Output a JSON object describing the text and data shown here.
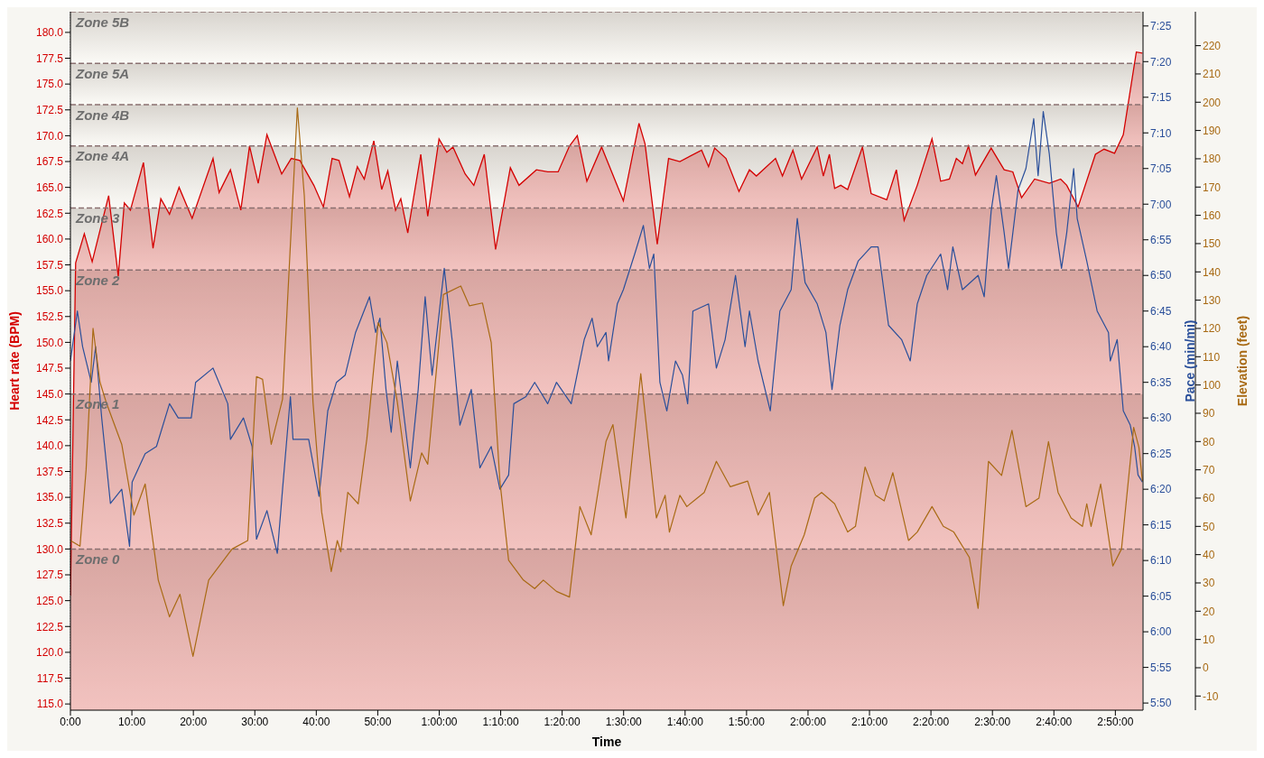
{
  "chart_data": {
    "type": "line",
    "xlabel": "Time",
    "ylabel": "Heart rate (BPM)",
    "y2label": "Pace (min/mi)",
    "y3label": "Elevation (feet)",
    "xlim": [
      0,
      174.5
    ],
    "xticks": [
      {
        "value": 0,
        "label": "0:00"
      },
      {
        "value": 10,
        "label": "10:00"
      },
      {
        "value": 20,
        "label": "20:00"
      },
      {
        "value": 30,
        "label": "30:00"
      },
      {
        "value": 40,
        "label": "40:00"
      },
      {
        "value": 50,
        "label": "50:00"
      },
      {
        "value": 60,
        "label": "1:00:00"
      },
      {
        "value": 70,
        "label": "1:10:00"
      },
      {
        "value": 80,
        "label": "1:20:00"
      },
      {
        "value": 90,
        "label": "1:30:00"
      },
      {
        "value": 100,
        "label": "1:40:00"
      },
      {
        "value": 110,
        "label": "1:50:00"
      },
      {
        "value": 120,
        "label": "2:00:00"
      },
      {
        "value": 130,
        "label": "2:10:00"
      },
      {
        "value": 140,
        "label": "2:20:00"
      },
      {
        "value": 150,
        "label": "2:30:00"
      },
      {
        "value": 160,
        "label": "2:40:00"
      },
      {
        "value": 170,
        "label": "2:50:00"
      }
    ],
    "ylim": [
      114.4,
      182
    ],
    "yticks": [
      {
        "value": 115,
        "label": "115.0"
      },
      {
        "value": 117.5,
        "label": "117.5"
      },
      {
        "value": 120,
        "label": "120.0"
      },
      {
        "value": 122.5,
        "label": "122.5"
      },
      {
        "value": 125,
        "label": "125.0"
      },
      {
        "value": 127.5,
        "label": "127.5"
      },
      {
        "value": 130,
        "label": "130.0"
      },
      {
        "value": 132.5,
        "label": "132.5"
      },
      {
        "value": 135,
        "label": "135.0"
      },
      {
        "value": 137.5,
        "label": "137.5"
      },
      {
        "value": 140,
        "label": "140.0"
      },
      {
        "value": 142.5,
        "label": "142.5"
      },
      {
        "value": 145,
        "label": "145.0"
      },
      {
        "value": 147.5,
        "label": "147.5"
      },
      {
        "value": 150,
        "label": "150.0"
      },
      {
        "value": 152.5,
        "label": "152.5"
      },
      {
        "value": 155,
        "label": "155.0"
      },
      {
        "value": 157.5,
        "label": "157.5"
      },
      {
        "value": 160,
        "label": "160.0"
      },
      {
        "value": 162.5,
        "label": "162.5"
      },
      {
        "value": 165,
        "label": "165.0"
      },
      {
        "value": 167.5,
        "label": "167.5"
      },
      {
        "value": 170,
        "label": "170.0"
      },
      {
        "value": 172.5,
        "label": "172.5"
      },
      {
        "value": 175,
        "label": "175.0"
      },
      {
        "value": 177.5,
        "label": "177.5"
      },
      {
        "value": 180,
        "label": "180.0"
      }
    ],
    "y2lim": [
      349,
      447
    ],
    "y2ticks": [
      {
        "value": 350,
        "label": "5:50"
      },
      {
        "value": 355,
        "label": "5:55"
      },
      {
        "value": 360,
        "label": "6:00"
      },
      {
        "value": 365,
        "label": "6:05"
      },
      {
        "value": 370,
        "label": "6:10"
      },
      {
        "value": 375,
        "label": "6:15"
      },
      {
        "value": 380,
        "label": "6:20"
      },
      {
        "value": 385,
        "label": "6:25"
      },
      {
        "value": 390,
        "label": "6:30"
      },
      {
        "value": 395,
        "label": "6:35"
      },
      {
        "value": 400,
        "label": "6:40"
      },
      {
        "value": 405,
        "label": "6:45"
      },
      {
        "value": 410,
        "label": "6:50"
      },
      {
        "value": 415,
        "label": "6:55"
      },
      {
        "value": 420,
        "label": "7:00"
      },
      {
        "value": 425,
        "label": "7:05"
      },
      {
        "value": 430,
        "label": "7:10"
      },
      {
        "value": 435,
        "label": "7:15"
      },
      {
        "value": 440,
        "label": "7:20"
      },
      {
        "value": 445,
        "label": "7:25"
      }
    ],
    "y3lim": [
      -15,
      232
    ],
    "y3ticks": [
      -10,
      0,
      10,
      20,
      30,
      40,
      50,
      60,
      70,
      80,
      90,
      100,
      110,
      120,
      130,
      140,
      150,
      160,
      170,
      180,
      190,
      200,
      210,
      220
    ],
    "grid": true,
    "legend": false,
    "marker": "none",
    "line_style": "solid",
    "bands": [
      {
        "axis": "y",
        "from": 114.4,
        "to": 130,
        "label": "Zone 0",
        "color": "#d8d4ce"
      },
      {
        "axis": "y",
        "from": 130,
        "to": 145,
        "label": "Zone 1",
        "color": "#d8d4ce"
      },
      {
        "axis": "y",
        "from": 145,
        "to": 157,
        "label": "Zone 2",
        "color": "#d8d4ce"
      },
      {
        "axis": "y",
        "from": 157,
        "to": 163,
        "label": "Zone 3",
        "color": "#d8d4ce"
      },
      {
        "axis": "y",
        "from": 163,
        "to": 169,
        "label": "Zone 4A",
        "color": "#d8d4ce"
      },
      {
        "axis": "y",
        "from": 169,
        "to": 173,
        "label": "Zone 4B",
        "color": "#d8d4ce"
      },
      {
        "axis": "y",
        "from": 173,
        "to": 177,
        "label": "Zone 5A",
        "color": "#d8d4ce"
      },
      {
        "axis": "y",
        "from": 177,
        "to": 182,
        "label": "Zone 5B",
        "color": "#d8d4ce"
      }
    ],
    "series": [
      {
        "type": "area",
        "axis": "y",
        "color": "#d40000",
        "x": [
          0,
          0.85,
          2.26,
          3.54,
          6.22,
          7.78,
          8.77,
          9.76,
          11.88,
          13.44,
          14.71,
          16.12,
          17.68,
          19.8,
          23.2,
          24.19,
          26.03,
          27.72,
          29.14,
          30.55,
          31.97,
          34.37,
          35.93,
          37.34,
          39.6,
          41.16,
          42.57,
          43.7,
          45.4,
          46.68,
          47.81,
          49.36,
          50.64,
          51.63,
          52.9,
          53.75,
          54.88,
          57,
          58.13,
          59.97,
          61.24,
          62.24,
          64.21,
          65.63,
          67.33,
          69.17,
          71.57,
          72.98,
          75.81,
          77.65,
          79.35,
          81.19,
          82.46,
          84.02,
          86.42,
          89.96,
          92.5,
          93.49,
          95.47,
          97.31,
          99.15,
          102.69,
          103.82,
          104.81,
          106.65,
          108.77,
          110.47,
          111.6,
          114.71,
          115.84,
          117.54,
          118.95,
          121.5,
          122.49,
          123.48,
          124.33,
          125.32,
          126.45,
          128.85,
          130.27,
          132.81,
          134.37,
          135.64,
          137.77,
          140.17,
          141.58,
          143,
          144.13,
          145.12,
          146.11,
          147.24,
          149.79,
          151.91,
          153.32,
          154.74,
          156.86,
          159.26,
          161.1,
          162.09,
          163.93,
          166.76,
          168.17,
          169.87,
          171.29,
          173.41,
          174.4
        ],
        "values": [
          125.5,
          157.7,
          160.5,
          157.8,
          164.2,
          156.4,
          163.5,
          162.8,
          167.4,
          159.1,
          163.9,
          162.4,
          165,
          162,
          167.8,
          164.5,
          166.7,
          162.8,
          169,
          165.4,
          170.1,
          166.3,
          167.8,
          167.6,
          165.2,
          163.1,
          167.8,
          167.6,
          164.1,
          167,
          165.8,
          169.5,
          164.8,
          166.6,
          162.8,
          163.9,
          160.6,
          168.2,
          162.2,
          169.7,
          168.4,
          168.9,
          166.3,
          165.2,
          168.2,
          159,
          166.9,
          165.2,
          166.7,
          166.5,
          166.5,
          169,
          170,
          165.6,
          168.9,
          163.7,
          171.2,
          169.2,
          159.5,
          167.8,
          167.5,
          168.6,
          167,
          168.8,
          167.8,
          164.6,
          166.7,
          166.1,
          167.8,
          166.1,
          168.6,
          165.8,
          168.9,
          166.1,
          168.2,
          164.9,
          165.2,
          164.8,
          168.9,
          164.4,
          163.8,
          166.7,
          161.8,
          165.2,
          169.7,
          165.6,
          165.8,
          167.8,
          167.3,
          169,
          166.2,
          168.8,
          166.7,
          166.5,
          164,
          165.8,
          165.4,
          165.8,
          165.2,
          163.1,
          168.2,
          168.7,
          168.3,
          170.1,
          178.1,
          178
        ]
      },
      {
        "axis": "y2",
        "color": "#2a4f9a",
        "x": [
          0,
          1.13,
          1.98,
          3.39,
          4.1,
          5.09,
          6.51,
          8.35,
          9.62,
          10.04,
          12.16,
          14,
          16.12,
          17.54,
          19.66,
          20.37,
          23.2,
          25.6,
          26.03,
          28.15,
          29.56,
          30.27,
          31.97,
          33.66,
          34.51,
          35.79,
          36.21,
          38.76,
          40.45,
          41.87,
          43.28,
          44.7,
          46.39,
          48.66,
          49.65,
          50.35,
          51.34,
          52.19,
          53.18,
          55.3,
          56.58,
          57.71,
          58.84,
          60.82,
          62.09,
          63.37,
          65.21,
          66.62,
          68.46,
          69.87,
          71.29,
          72.14,
          74.12,
          75.53,
          77.65,
          79.07,
          81.47,
          83.59,
          84.87,
          85.71,
          87.13,
          87.55,
          88.97,
          89.96,
          91.8,
          93.21,
          94.2,
          94.91,
          95.9,
          97.03,
          98.44,
          99.58,
          100.42,
          101.27,
          103.82,
          105.09,
          106.51,
          108.2,
          109.76,
          110.47,
          111.88,
          113.86,
          115.42,
          117.26,
          118.25,
          119.52,
          121.5,
          122.91,
          123.9,
          125.18,
          126.45,
          128.15,
          130.27,
          131.4,
          133.1,
          135.22,
          136.63,
          137.77,
          139.32,
          141.58,
          142.71,
          143.56,
          145.12,
          147.67,
          148.66,
          149.79,
          150.64,
          151.91,
          152.62,
          154.17,
          155.45,
          156.72,
          157.43,
          158.27,
          159.26,
          160.4,
          161.24,
          162.09,
          163.22,
          163.79,
          165.35,
          167.04,
          168.88,
          169.17,
          170.3,
          171.29,
          172.42,
          173.13,
          173.69,
          174.4
        ],
        "values": [
          398,
          405,
          400,
          395,
          400,
          390,
          378,
          380,
          372,
          381,
          385,
          386,
          392,
          390,
          390,
          395,
          397,
          392,
          387,
          390,
          386,
          373,
          377,
          371,
          380,
          393,
          387,
          387,
          379,
          391,
          395,
          396,
          402,
          407,
          402,
          404,
          394,
          388,
          398,
          383,
          394,
          407,
          396,
          411,
          401,
          389,
          394,
          383,
          386,
          380,
          382,
          392,
          393,
          395,
          392,
          395,
          392,
          401,
          404,
          400,
          402,
          398,
          406,
          408,
          413,
          417,
          411,
          413,
          395,
          391,
          398,
          396,
          392,
          405,
          406,
          397,
          401,
          410,
          400,
          405,
          398,
          391,
          405,
          408,
          418,
          409,
          406,
          402,
          394,
          403,
          408,
          412,
          414,
          414,
          403,
          401,
          398,
          406,
          410,
          413,
          408,
          414,
          408,
          410,
          407,
          419,
          424,
          416,
          411,
          422,
          425,
          432,
          424,
          433,
          427,
          416,
          411,
          416,
          425,
          418,
          412,
          405,
          402,
          398,
          401,
          391,
          389,
          386,
          382,
          381
        ]
      },
      {
        "axis": "y3",
        "color": "#a86a14",
        "x": [
          0,
          1.56,
          2.55,
          3.68,
          4.81,
          5.8,
          8.35,
          10.33,
          12.16,
          14.29,
          16.12,
          17.82,
          19.94,
          22.49,
          26.31,
          28.85,
          30.27,
          31.26,
          32.67,
          34.51,
          36.92,
          38.05,
          39.46,
          40.88,
          42.43,
          43.42,
          43.99,
          45.12,
          46.82,
          48.23,
          50.07,
          51.49,
          53.18,
          55.3,
          57.14,
          58.13,
          60.68,
          63.51,
          64.92,
          67.04,
          68.46,
          69.87,
          71.29,
          73.69,
          75.53,
          76.94,
          79.07,
          81.19,
          82.89,
          84.72,
          87.13,
          88.26,
          90.38,
          92.79,
          95.33,
          96.75,
          97.45,
          99.15,
          100.28,
          103.11,
          105.09,
          107.36,
          110.18,
          111.88,
          113.72,
          115.98,
          117.26,
          119.38,
          121.07,
          122.21,
          124.33,
          126.45,
          127.72,
          129.28,
          130.98,
          132.39,
          133.8,
          136.35,
          137.77,
          140.17,
          142.01,
          143.71,
          146.25,
          147.67,
          149.36,
          151.49,
          153.18,
          155.45,
          157.57,
          159.12,
          160.68,
          162.8,
          164.64,
          165.35,
          166.05,
          167.61,
          169.59,
          171,
          172.98,
          173.83,
          174.4
        ],
        "values": [
          45,
          43,
          70,
          120,
          101,
          94,
          79,
          54,
          65,
          31,
          18,
          26,
          4,
          31,
          42,
          45,
          103,
          102,
          79,
          95,
          198,
          167,
          94,
          55,
          34,
          45,
          41,
          62,
          58,
          81,
          122,
          115,
          94,
          59,
          76,
          72,
          132,
          135,
          128,
          129,
          115,
          66,
          38,
          31,
          28,
          31,
          27,
          25,
          57,
          47,
          80,
          86,
          53,
          104,
          53,
          61,
          48,
          61,
          57,
          62,
          73,
          64,
          66,
          54,
          62,
          22,
          36,
          47,
          60,
          62,
          58,
          48,
          50,
          71,
          61,
          59,
          69,
          45,
          48,
          57,
          50,
          48,
          39,
          21,
          73,
          68,
          84,
          57,
          60,
          80,
          62,
          53,
          50,
          58,
          50,
          65,
          36,
          42,
          85,
          78,
          66
        ]
      }
    ]
  }
}
